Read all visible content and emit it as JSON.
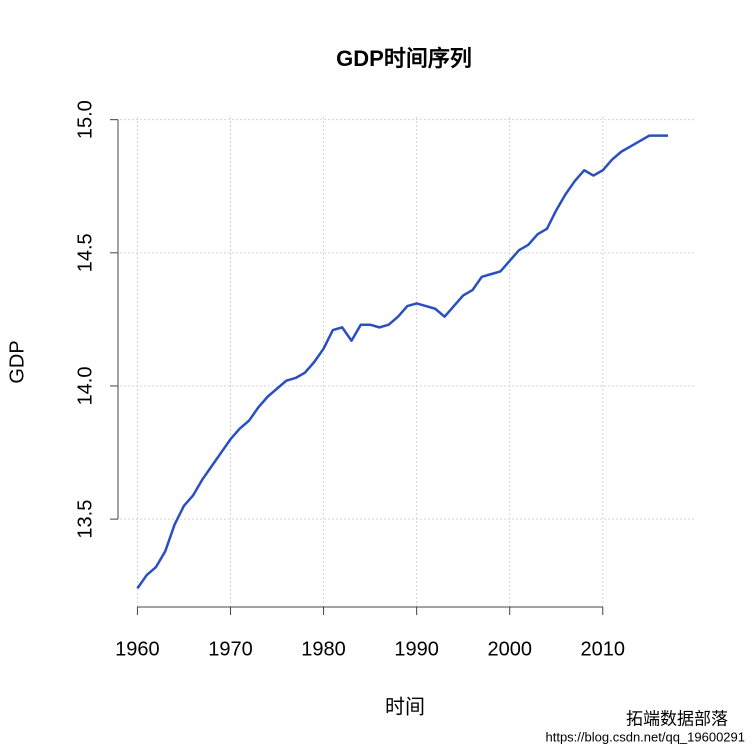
{
  "chart_data": {
    "type": "line",
    "title": "GDP时间序列",
    "x_label": "时间",
    "y_label": "GDP",
    "x": [
      1960,
      1961,
      1962,
      1963,
      1964,
      1965,
      1966,
      1967,
      1968,
      1969,
      1970,
      1971,
      1972,
      1973,
      1974,
      1975,
      1976,
      1977,
      1978,
      1979,
      1980,
      1981,
      1982,
      1983,
      1984,
      1985,
      1986,
      1987,
      1988,
      1989,
      1990,
      1991,
      1992,
      1993,
      1994,
      1995,
      1996,
      1997,
      1998,
      1999,
      2000,
      2001,
      2002,
      2003,
      2004,
      2005,
      2006,
      2007,
      2008,
      2009,
      2010,
      2011,
      2012,
      2013,
      2014,
      2015,
      2016,
      2017
    ],
    "series": [
      {
        "name": "GDP",
        "color": "#2a4fbf",
        "values": [
          13.24,
          13.29,
          13.32,
          13.38,
          13.48,
          13.55,
          13.59,
          13.65,
          13.7,
          13.75,
          13.8,
          13.84,
          13.87,
          13.92,
          13.96,
          13.99,
          14.02,
          14.03,
          14.05,
          14.09,
          14.14,
          14.21,
          14.22,
          14.17,
          14.23,
          14.23,
          14.22,
          14.23,
          14.26,
          14.3,
          14.31,
          14.3,
          14.29,
          14.26,
          14.3,
          14.34,
          14.36,
          14.41,
          14.42,
          14.43,
          14.47,
          14.51,
          14.53,
          14.57,
          14.59,
          14.66,
          14.72,
          14.77,
          14.81,
          14.79,
          14.81,
          14.85,
          14.88,
          14.9,
          14.92,
          14.94,
          14.94,
          14.94
        ]
      }
    ],
    "xlim": [
      1957.7,
      2019.8
    ],
    "xticks": [
      1960,
      1970,
      1980,
      1990,
      2000,
      2010
    ],
    "ylim": [
      13.17,
      15.01
    ],
    "yticks": [
      {
        "value": 13.5,
        "label": "13.5"
      },
      {
        "value": 14,
        "label": "14.0"
      },
      {
        "value": 14.5,
        "label": "14.5"
      },
      {
        "value": 15,
        "label": "15.0"
      }
    ],
    "grid": true,
    "annotations": [
      "拓端数据部落",
      "https://blog.csdn.net/qq_19600291"
    ]
  }
}
